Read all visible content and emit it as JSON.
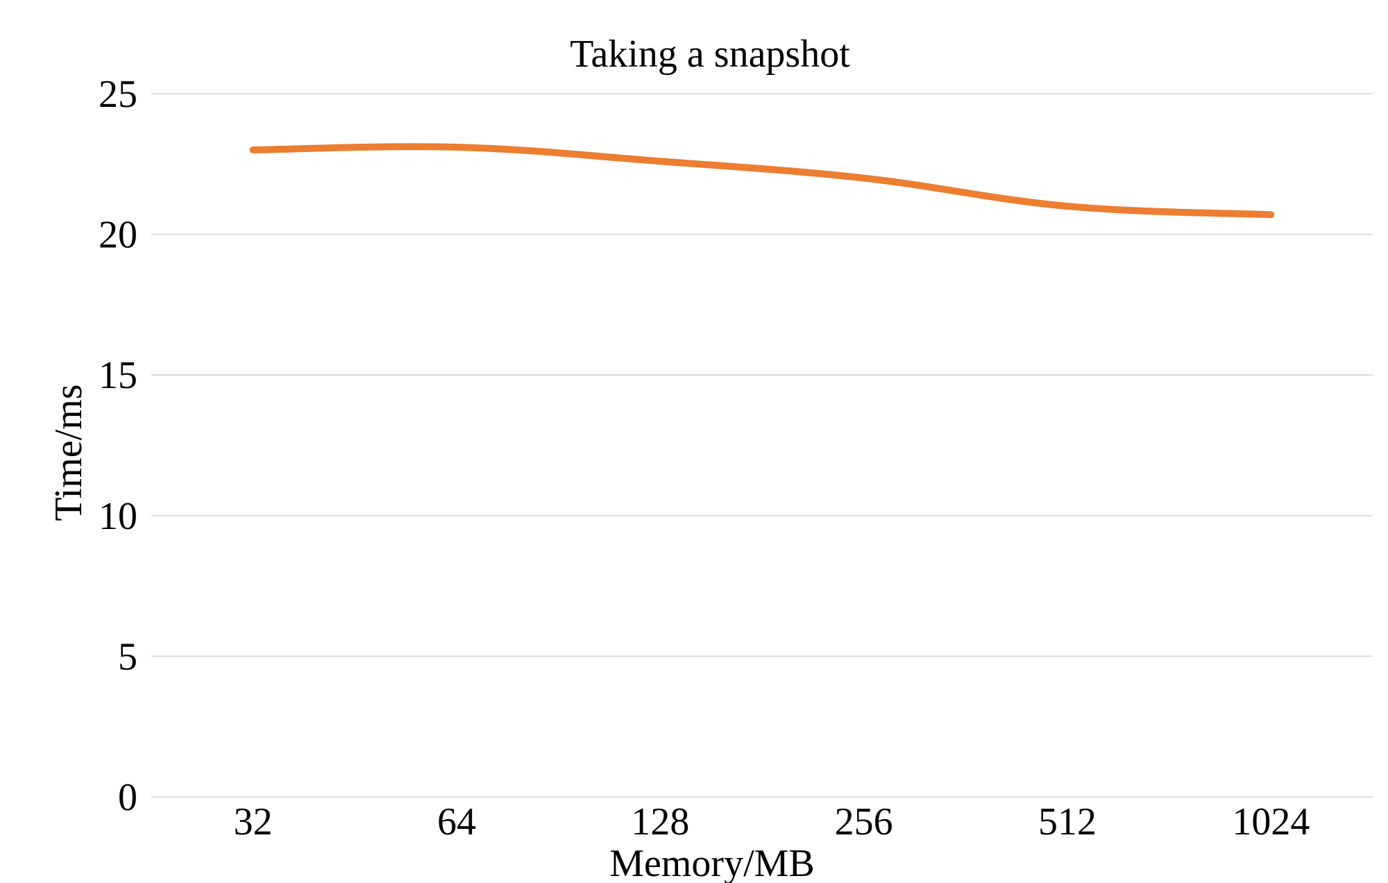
{
  "chart_data": {
    "type": "line",
    "title": "Taking a snapshot",
    "xlabel": "Memory/MB",
    "ylabel": "Time/ms",
    "categories": [
      "32",
      "64",
      "128",
      "256",
      "512",
      "1024"
    ],
    "yticks": [
      "0",
      "5",
      "10",
      "15",
      "20",
      "25"
    ],
    "ylim": [
      0,
      25
    ],
    "grid": true,
    "legend": "none",
    "series": [
      {
        "values": [
          23.0,
          23.1,
          22.6,
          22.0,
          21.0,
          20.7
        ],
        "color": "#ed7d31"
      }
    ]
  }
}
